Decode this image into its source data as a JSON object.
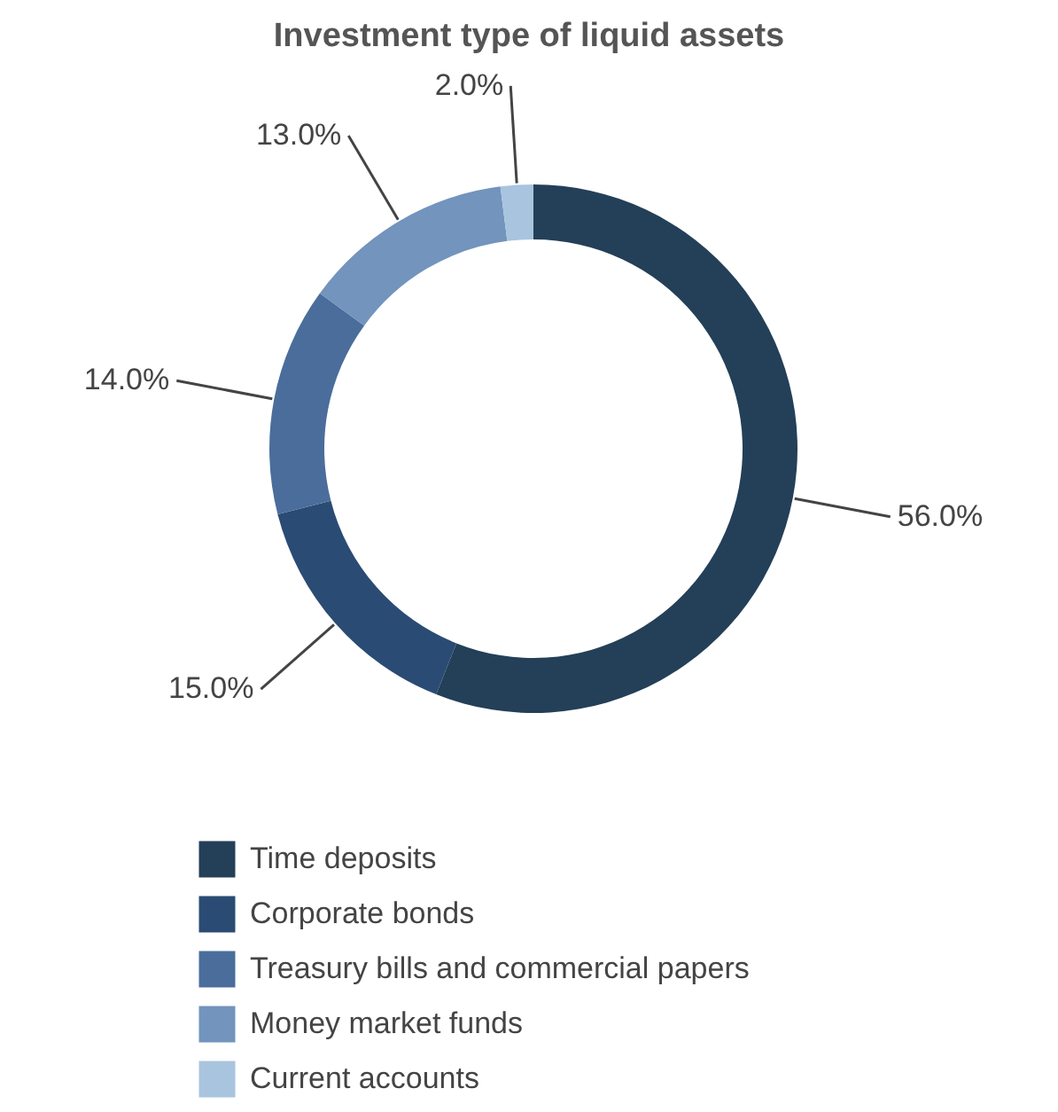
{
  "chart_data": {
    "type": "donut",
    "title": "Investment type of liquid assets",
    "categories": [
      "Time deposits",
      "Corporate bonds",
      "Treasury bills and commercial papers",
      "Money market funds",
      "Current accounts"
    ],
    "values": [
      56,
      15,
      14,
      13,
      2
    ],
    "colors": [
      "#243f58",
      "#2a4b73",
      "#4a6d9b",
      "#7294bd",
      "#a9c4de"
    ],
    "value_labels": [
      "56.0%",
      "15.0%",
      "14.0%",
      "13.0%",
      "2.0%"
    ],
    "legend": "bottom"
  }
}
